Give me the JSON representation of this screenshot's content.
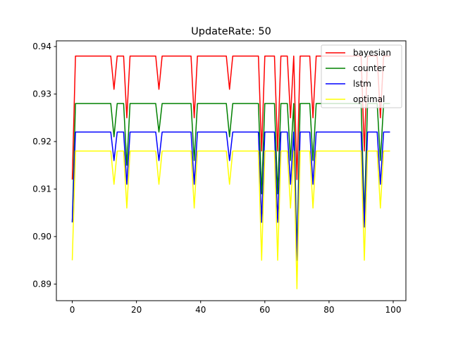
{
  "chart_data": {
    "type": "line",
    "title": "UpdateRate: 50",
    "xlabel": "",
    "ylabel": "",
    "xlim": [
      -4.95,
      103.95
    ],
    "ylim": [
      0.8865,
      0.9412
    ],
    "xticks": [
      0,
      20,
      40,
      60,
      80,
      100
    ],
    "yticks": [
      0.89,
      0.9,
      0.91,
      0.92,
      0.93,
      0.94
    ],
    "ytick_labels": [
      "0.89",
      "0.90",
      "0.91",
      "0.92",
      "0.93",
      "0.94"
    ],
    "legend_position": "top-right",
    "grid": false,
    "x": [
      0,
      1,
      2,
      3,
      4,
      5,
      6,
      7,
      8,
      9,
      10,
      11,
      12,
      13,
      14,
      15,
      16,
      17,
      18,
      19,
      20,
      21,
      22,
      23,
      24,
      25,
      26,
      27,
      28,
      29,
      30,
      31,
      32,
      33,
      34,
      35,
      36,
      37,
      38,
      39,
      40,
      41,
      42,
      43,
      44,
      45,
      46,
      47,
      48,
      49,
      50,
      51,
      52,
      53,
      54,
      55,
      56,
      57,
      58,
      59,
      60,
      61,
      62,
      63,
      64,
      65,
      66,
      67,
      68,
      69,
      70,
      71,
      72,
      73,
      74,
      75,
      76,
      77,
      78,
      79,
      80,
      81,
      82,
      83,
      84,
      85,
      86,
      87,
      88,
      89,
      90,
      91,
      92,
      93,
      94,
      95,
      96,
      97,
      98,
      99
    ],
    "series": [
      {
        "name": "bayesian",
        "color": "#ff0000",
        "values": [
          0.912,
          0.938,
          0.938,
          0.938,
          0.938,
          0.938,
          0.938,
          0.938,
          0.938,
          0.938,
          0.938,
          0.938,
          0.938,
          0.931,
          0.938,
          0.938,
          0.938,
          0.925,
          0.938,
          0.938,
          0.938,
          0.938,
          0.938,
          0.938,
          0.938,
          0.938,
          0.938,
          0.931,
          0.938,
          0.938,
          0.938,
          0.938,
          0.938,
          0.938,
          0.938,
          0.938,
          0.938,
          0.938,
          0.925,
          0.938,
          0.938,
          0.938,
          0.938,
          0.938,
          0.938,
          0.938,
          0.938,
          0.938,
          0.938,
          0.931,
          0.938,
          0.938,
          0.938,
          0.938,
          0.938,
          0.938,
          0.938,
          0.938,
          0.938,
          0.918,
          0.938,
          0.938,
          0.938,
          0.938,
          0.918,
          0.938,
          0.938,
          0.938,
          0.925,
          0.938,
          0.912,
          0.938,
          0.938,
          0.938,
          0.938,
          0.925,
          0.938,
          0.938,
          0.938,
          0.938,
          0.938,
          0.938,
          0.938,
          0.938,
          0.938,
          0.938,
          0.938,
          0.938,
          0.938,
          0.938,
          0.938,
          0.918,
          0.938,
          0.938,
          0.938,
          0.938,
          0.925,
          0.938,
          0.938,
          0.938
        ]
      },
      {
        "name": "counter",
        "color": "#008000",
        "values": [
          0.903,
          0.928,
          0.928,
          0.928,
          0.928,
          0.928,
          0.928,
          0.928,
          0.928,
          0.928,
          0.928,
          0.928,
          0.928,
          0.921,
          0.928,
          0.928,
          0.928,
          0.915,
          0.928,
          0.928,
          0.928,
          0.928,
          0.928,
          0.928,
          0.928,
          0.928,
          0.928,
          0.922,
          0.928,
          0.928,
          0.928,
          0.928,
          0.928,
          0.928,
          0.928,
          0.928,
          0.928,
          0.928,
          0.916,
          0.928,
          0.928,
          0.928,
          0.928,
          0.928,
          0.928,
          0.928,
          0.928,
          0.928,
          0.928,
          0.921,
          0.928,
          0.928,
          0.928,
          0.928,
          0.928,
          0.928,
          0.928,
          0.928,
          0.928,
          0.909,
          0.928,
          0.928,
          0.928,
          0.928,
          0.909,
          0.928,
          0.928,
          0.928,
          0.916,
          0.928,
          0.896,
          0.928,
          0.928,
          0.928,
          0.928,
          0.916,
          0.928,
          0.928,
          0.928,
          0.928,
          0.928,
          0.928,
          0.928,
          0.928,
          0.928,
          0.928,
          0.928,
          0.928,
          0.928,
          0.928,
          0.928,
          0.904,
          0.928,
          0.928,
          0.928,
          0.928,
          0.916,
          0.928,
          0.928,
          0.928
        ]
      },
      {
        "name": "lstm",
        "color": "#0000ff",
        "values": [
          0.903,
          0.922,
          0.922,
          0.922,
          0.922,
          0.922,
          0.922,
          0.922,
          0.922,
          0.922,
          0.922,
          0.922,
          0.922,
          0.916,
          0.922,
          0.922,
          0.922,
          0.911,
          0.922,
          0.922,
          0.922,
          0.922,
          0.922,
          0.922,
          0.922,
          0.922,
          0.922,
          0.916,
          0.922,
          0.922,
          0.922,
          0.922,
          0.922,
          0.922,
          0.922,
          0.922,
          0.922,
          0.922,
          0.911,
          0.922,
          0.922,
          0.922,
          0.922,
          0.922,
          0.922,
          0.922,
          0.922,
          0.922,
          0.922,
          0.916,
          0.922,
          0.922,
          0.922,
          0.922,
          0.922,
          0.922,
          0.922,
          0.922,
          0.922,
          0.903,
          0.922,
          0.922,
          0.922,
          0.922,
          0.903,
          0.922,
          0.922,
          0.922,
          0.911,
          0.922,
          0.895,
          0.922,
          0.922,
          0.922,
          0.922,
          0.911,
          0.922,
          0.922,
          0.922,
          0.922,
          0.922,
          0.922,
          0.922,
          0.922,
          0.922,
          0.922,
          0.922,
          0.922,
          0.922,
          0.922,
          0.922,
          0.902,
          0.922,
          0.922,
          0.922,
          0.922,
          0.911,
          0.922,
          0.922,
          0.922
        ]
      },
      {
        "name": "optimal",
        "color": "#ffff00",
        "values": [
          0.895,
          0.918,
          0.918,
          0.918,
          0.918,
          0.918,
          0.918,
          0.918,
          0.918,
          0.918,
          0.918,
          0.918,
          0.918,
          0.911,
          0.918,
          0.918,
          0.918,
          0.906,
          0.918,
          0.918,
          0.918,
          0.918,
          0.918,
          0.918,
          0.918,
          0.918,
          0.918,
          0.911,
          0.918,
          0.918,
          0.918,
          0.918,
          0.918,
          0.918,
          0.918,
          0.918,
          0.918,
          0.918,
          0.906,
          0.918,
          0.918,
          0.918,
          0.918,
          0.918,
          0.918,
          0.918,
          0.918,
          0.918,
          0.918,
          0.911,
          0.918,
          0.918,
          0.918,
          0.918,
          0.918,
          0.918,
          0.918,
          0.918,
          0.918,
          0.895,
          0.918,
          0.918,
          0.918,
          0.918,
          0.895,
          0.918,
          0.918,
          0.918,
          0.906,
          0.918,
          0.889,
          0.918,
          0.918,
          0.918,
          0.918,
          0.906,
          0.918,
          0.918,
          0.918,
          0.918,
          0.918,
          0.918,
          0.918,
          0.918,
          0.918,
          0.918,
          0.918,
          0.918,
          0.918,
          0.918,
          0.918,
          0.895,
          0.918,
          0.918,
          0.918,
          0.918,
          0.906,
          0.918,
          0.918,
          0.918
        ]
      }
    ]
  }
}
